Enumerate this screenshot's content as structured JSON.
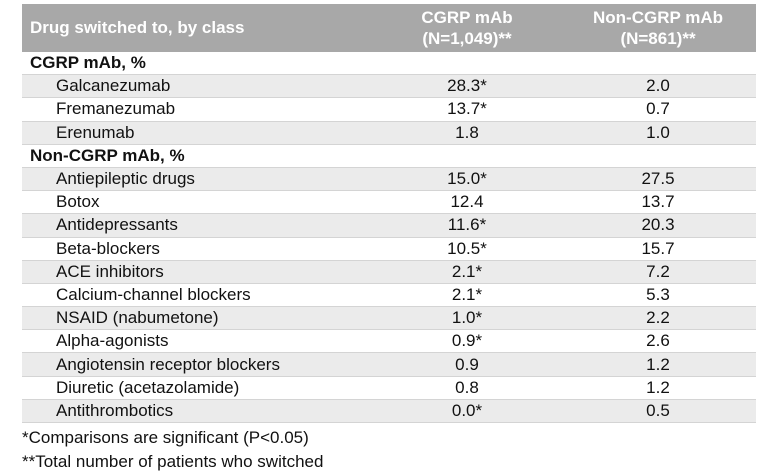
{
  "header": {
    "col1": "Drug switched to, by class",
    "col2_line1": "CGRP mAb",
    "col2_line2": "(N=1,049)**",
    "col3_line1": "Non-CGRP mAb",
    "col3_line2": "(N=861)**"
  },
  "sections": [
    {
      "title": "CGRP mAb, %",
      "rows": [
        {
          "drug": "Galcanezumab",
          "cgrp": "28.3*",
          "non_cgrp": "2.0"
        },
        {
          "drug": "Fremanezumab",
          "cgrp": "13.7*",
          "non_cgrp": "0.7"
        },
        {
          "drug": "Erenumab",
          "cgrp": "1.8",
          "non_cgrp": "1.0"
        }
      ]
    },
    {
      "title": "Non-CGRP mAb, %",
      "rows": [
        {
          "drug": "Antiepileptic drugs",
          "cgrp": "15.0*",
          "non_cgrp": "27.5"
        },
        {
          "drug": "Botox",
          "cgrp": "12.4",
          "non_cgrp": "13.7"
        },
        {
          "drug": "Antidepressants",
          "cgrp": "11.6*",
          "non_cgrp": "20.3"
        },
        {
          "drug": "Beta-blockers",
          "cgrp": "10.5*",
          "non_cgrp": "15.7"
        },
        {
          "drug": "ACE inhibitors",
          "cgrp": "2.1*",
          "non_cgrp": "7.2"
        },
        {
          "drug": "Calcium-channel blockers",
          "cgrp": "2.1*",
          "non_cgrp": "5.3"
        },
        {
          "drug": "NSAID (nabumetone)",
          "cgrp": "1.0*",
          "non_cgrp": "2.2"
        },
        {
          "drug": "Alpha-agonists",
          "cgrp": "0.9*",
          "non_cgrp": "2.6"
        },
        {
          "drug": "Angiotensin receptor blockers",
          "cgrp": "0.9",
          "non_cgrp": "1.2"
        },
        {
          "drug": "Diuretic (acetazolamide)",
          "cgrp": "0.8",
          "non_cgrp": "1.2"
        },
        {
          "drug": "Antithrombotics",
          "cgrp": "0.0*",
          "non_cgrp": "0.5"
        }
      ]
    }
  ],
  "footnotes": [
    "*Comparisons are significant (P<0.05)",
    "**Total number of patients who switched"
  ]
}
